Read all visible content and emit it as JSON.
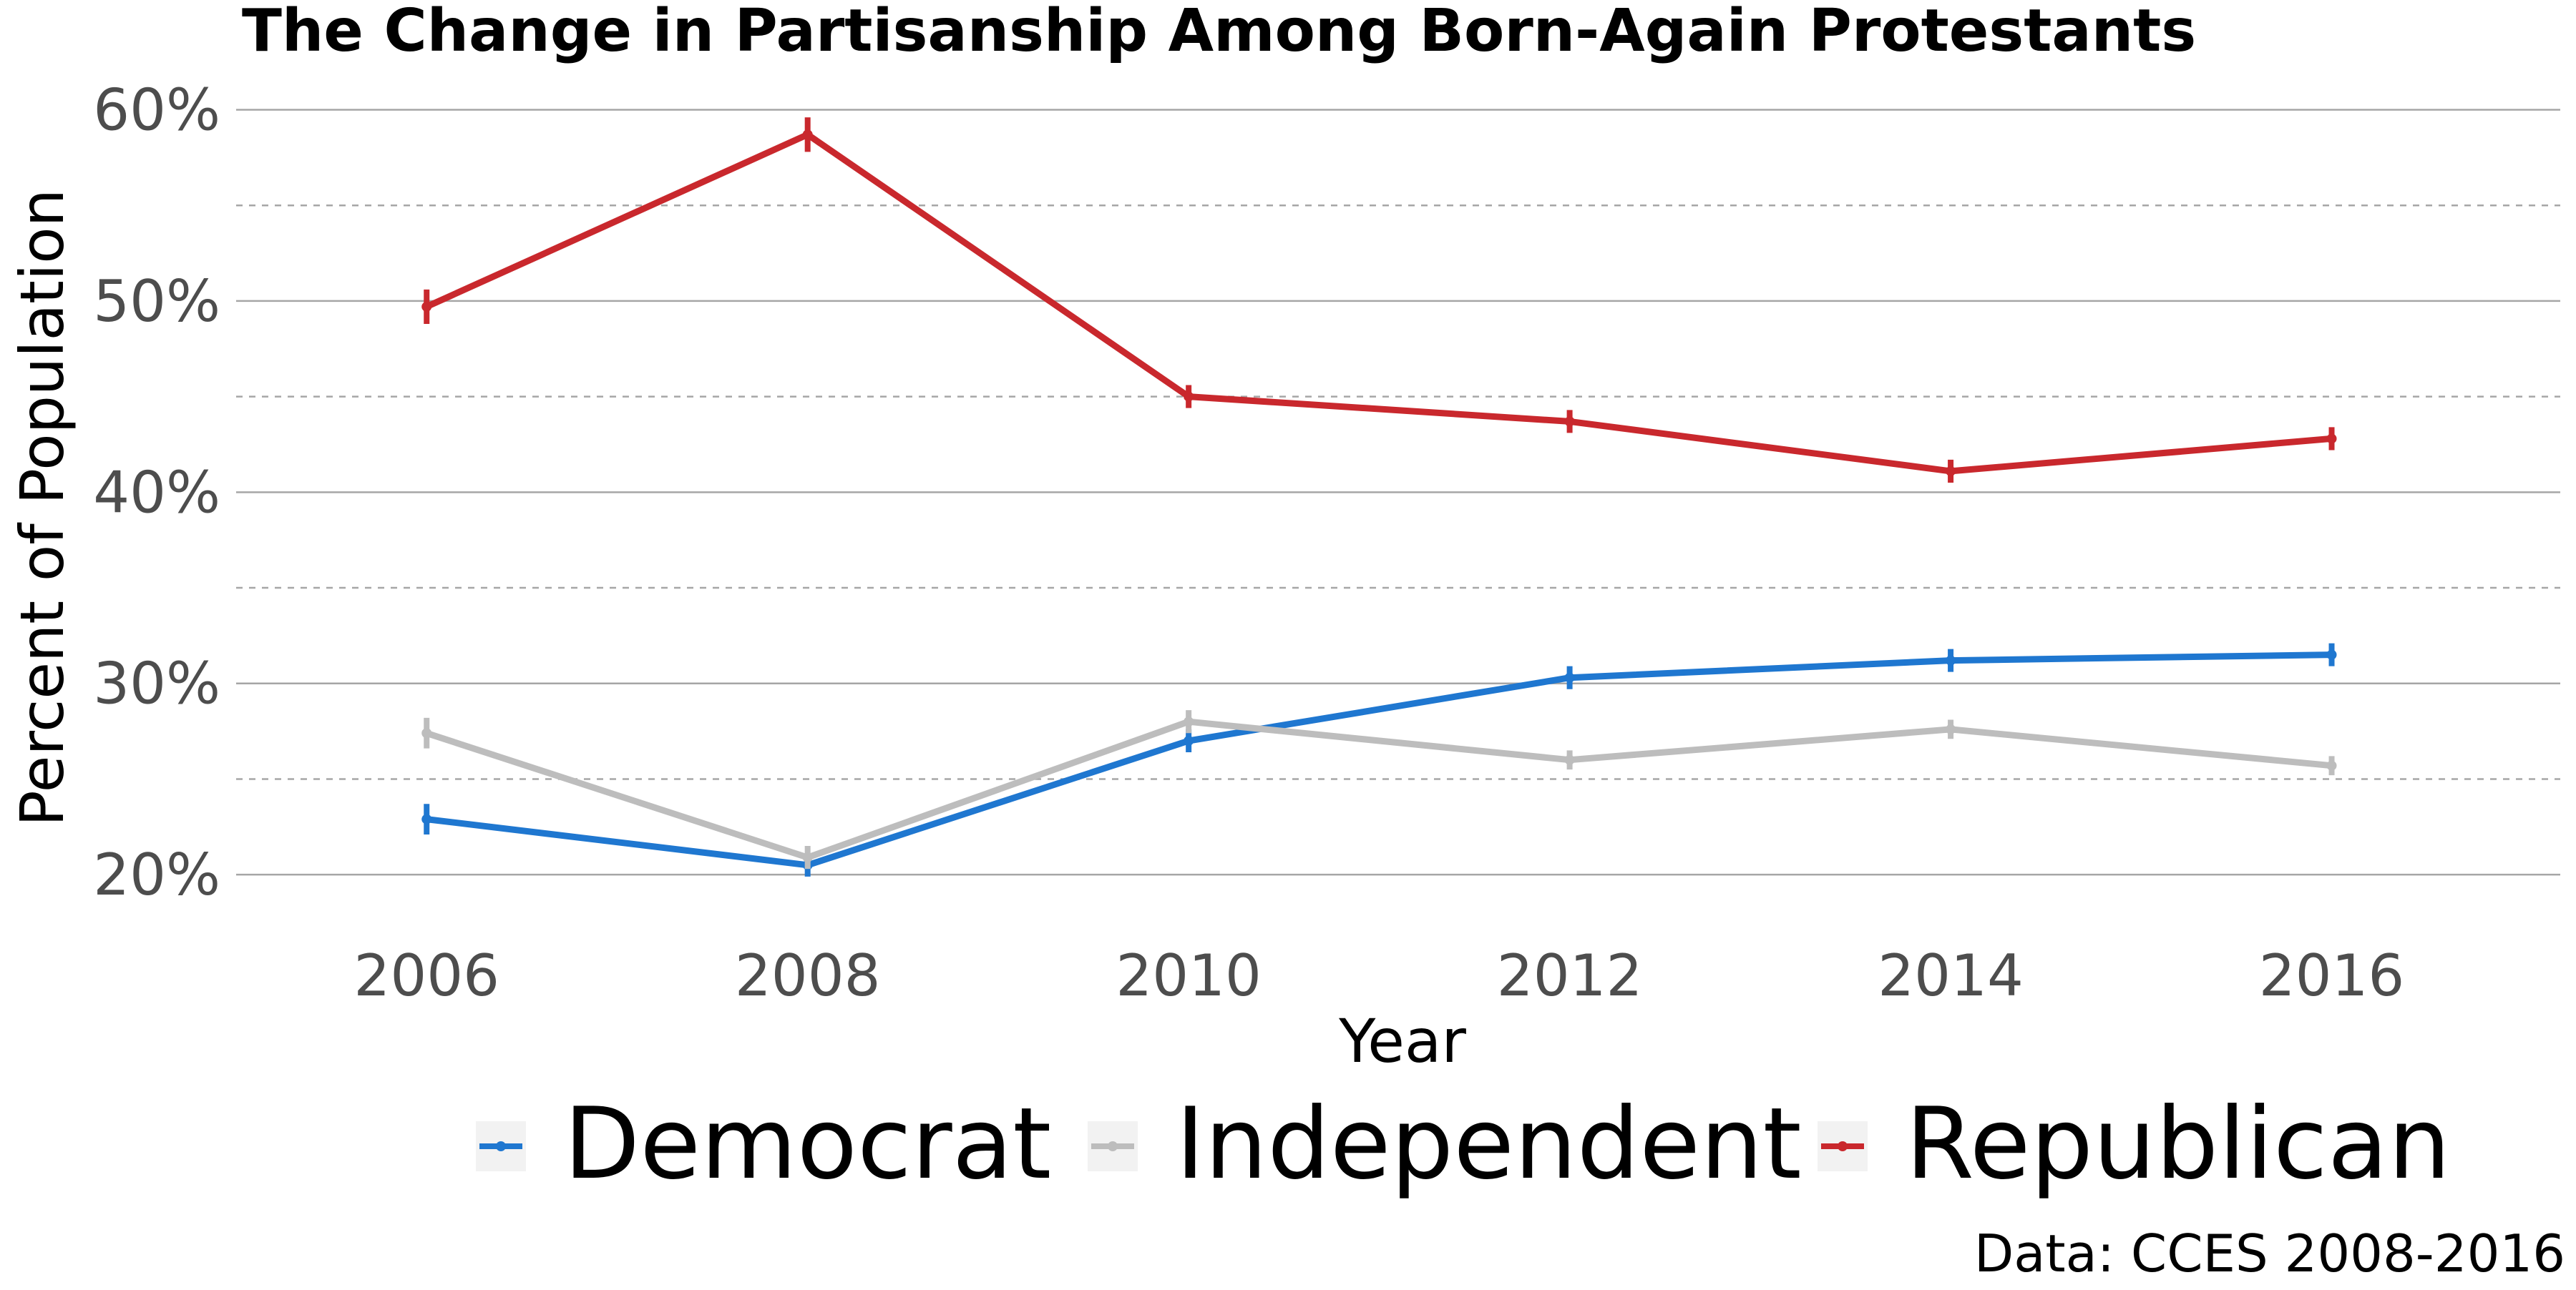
{
  "chart_data": {
    "type": "line",
    "title": "The Change in Partisanship Among Born-Again Protestants",
    "xlabel": "Year",
    "ylabel": "Percent of Population",
    "caption": "Data: CCES 2008-2016",
    "x": [
      2006,
      2008,
      2010,
      2012,
      2014,
      2016
    ],
    "x_tick_labels": [
      "2006",
      "2008",
      "2010",
      "2012",
      "2014",
      "2016"
    ],
    "xlim": [
      2005,
      2017.2
    ],
    "ylim": [
      17.5,
      62
    ],
    "y_ticks": [
      20,
      30,
      40,
      50,
      60
    ],
    "y_tick_labels": [
      "20%",
      "30%",
      "40%",
      "50%",
      "60%"
    ],
    "y_minor_ticks": [
      25,
      35,
      45,
      55
    ],
    "grid": true,
    "legend_position": "bottom",
    "series": [
      {
        "name": "Democrat",
        "color": "#1f77d0",
        "values": [
          22.9,
          20.5,
          27.0,
          30.3,
          31.2,
          31.5
        ],
        "error": [
          0.8,
          0.6,
          0.6,
          0.6,
          0.6,
          0.6
        ]
      },
      {
        "name": "Independent",
        "color": "#bdbdbd",
        "values": [
          27.4,
          20.9,
          28.0,
          26.0,
          27.6,
          25.7
        ],
        "error": [
          0.8,
          0.6,
          0.6,
          0.5,
          0.5,
          0.5
        ]
      },
      {
        "name": "Republican",
        "color": "#c9282d",
        "values": [
          49.7,
          58.7,
          45.0,
          43.7,
          41.1,
          42.8
        ],
        "error": [
          0.9,
          0.9,
          0.6,
          0.6,
          0.6,
          0.6
        ]
      }
    ]
  }
}
